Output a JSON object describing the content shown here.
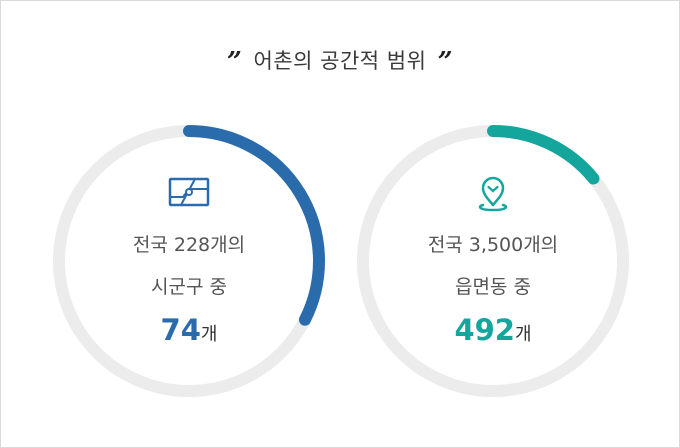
{
  "title": {
    "open_quote": "”",
    "text": "어촌의 공간적 범위",
    "close_quote": "”"
  },
  "cards": [
    {
      "icon": "map-icon",
      "line1": "전국 228개의",
      "line2": "시군구 중",
      "value": "74",
      "unit": "개",
      "fraction": 0.3246,
      "color": "#2a6cab"
    },
    {
      "icon": "location-pin-icon",
      "line1": "전국 3,500개의",
      "line2": "읍면동 중",
      "value": "492",
      "unit": "개",
      "fraction": 0.1406,
      "color": "#14a59c"
    }
  ],
  "track_color": "#ececec"
}
